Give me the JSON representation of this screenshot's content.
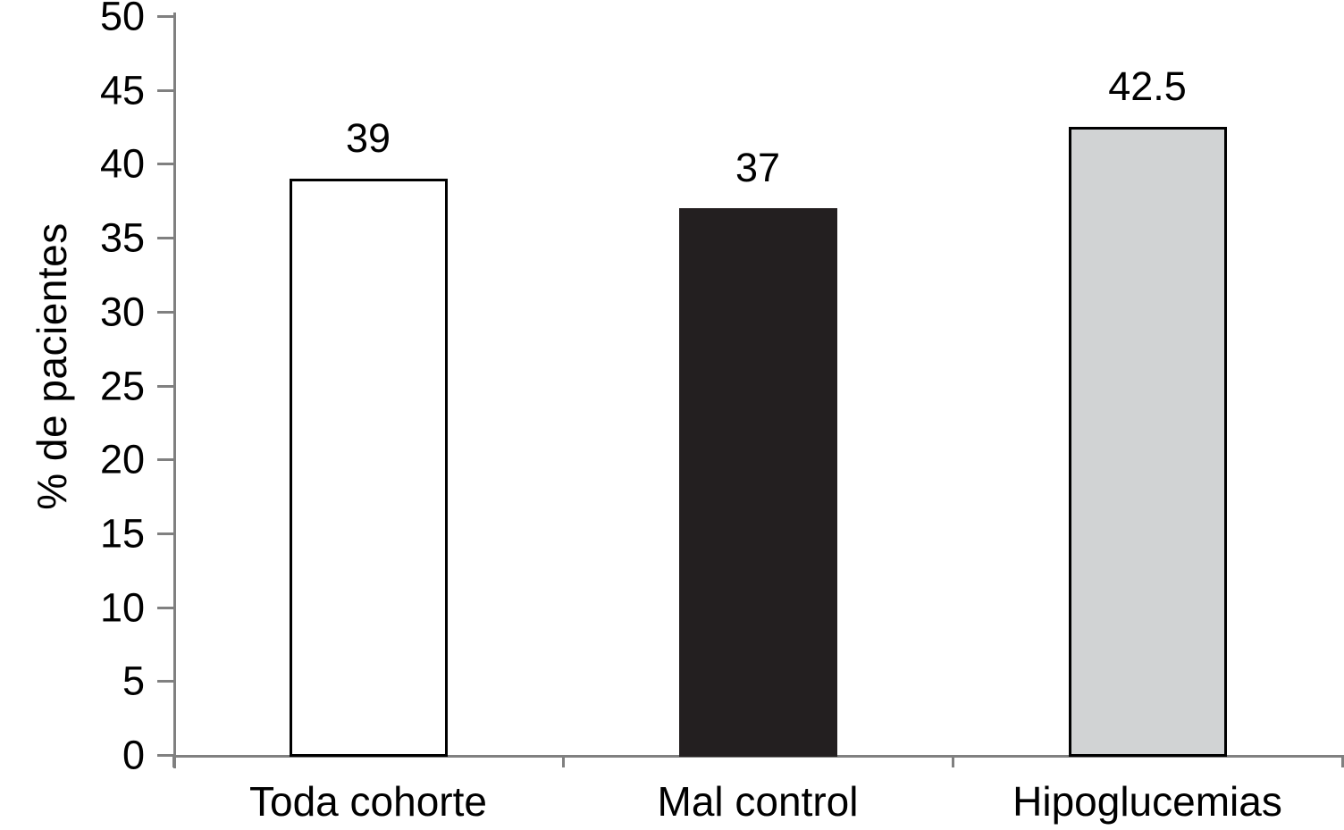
{
  "chart_data": {
    "type": "bar",
    "title": "",
    "categories": [
      "Toda cohorte",
      "Mal control",
      "Hipoglucemias"
    ],
    "values": [
      39,
      37,
      42.5
    ],
    "data_labels": [
      "39",
      "37",
      "42.5"
    ],
    "xlabel": "",
    "ylabel": "% de pacientes",
    "ylim": [
      0,
      50
    ],
    "ytick_step": 5,
    "yticks": [
      0,
      5,
      10,
      15,
      20,
      25,
      30,
      35,
      40,
      45,
      50
    ],
    "grid": false,
    "legend": "none",
    "bar_fill_colors": [
      "#ffffff",
      "#231f20",
      "#d1d3d4"
    ],
    "bar_border_colors": [
      "#000000",
      "#231f20",
      "#000000"
    ],
    "axis_color": "#808080",
    "text_color": "#000000",
    "background_color": "#ffffff"
  }
}
